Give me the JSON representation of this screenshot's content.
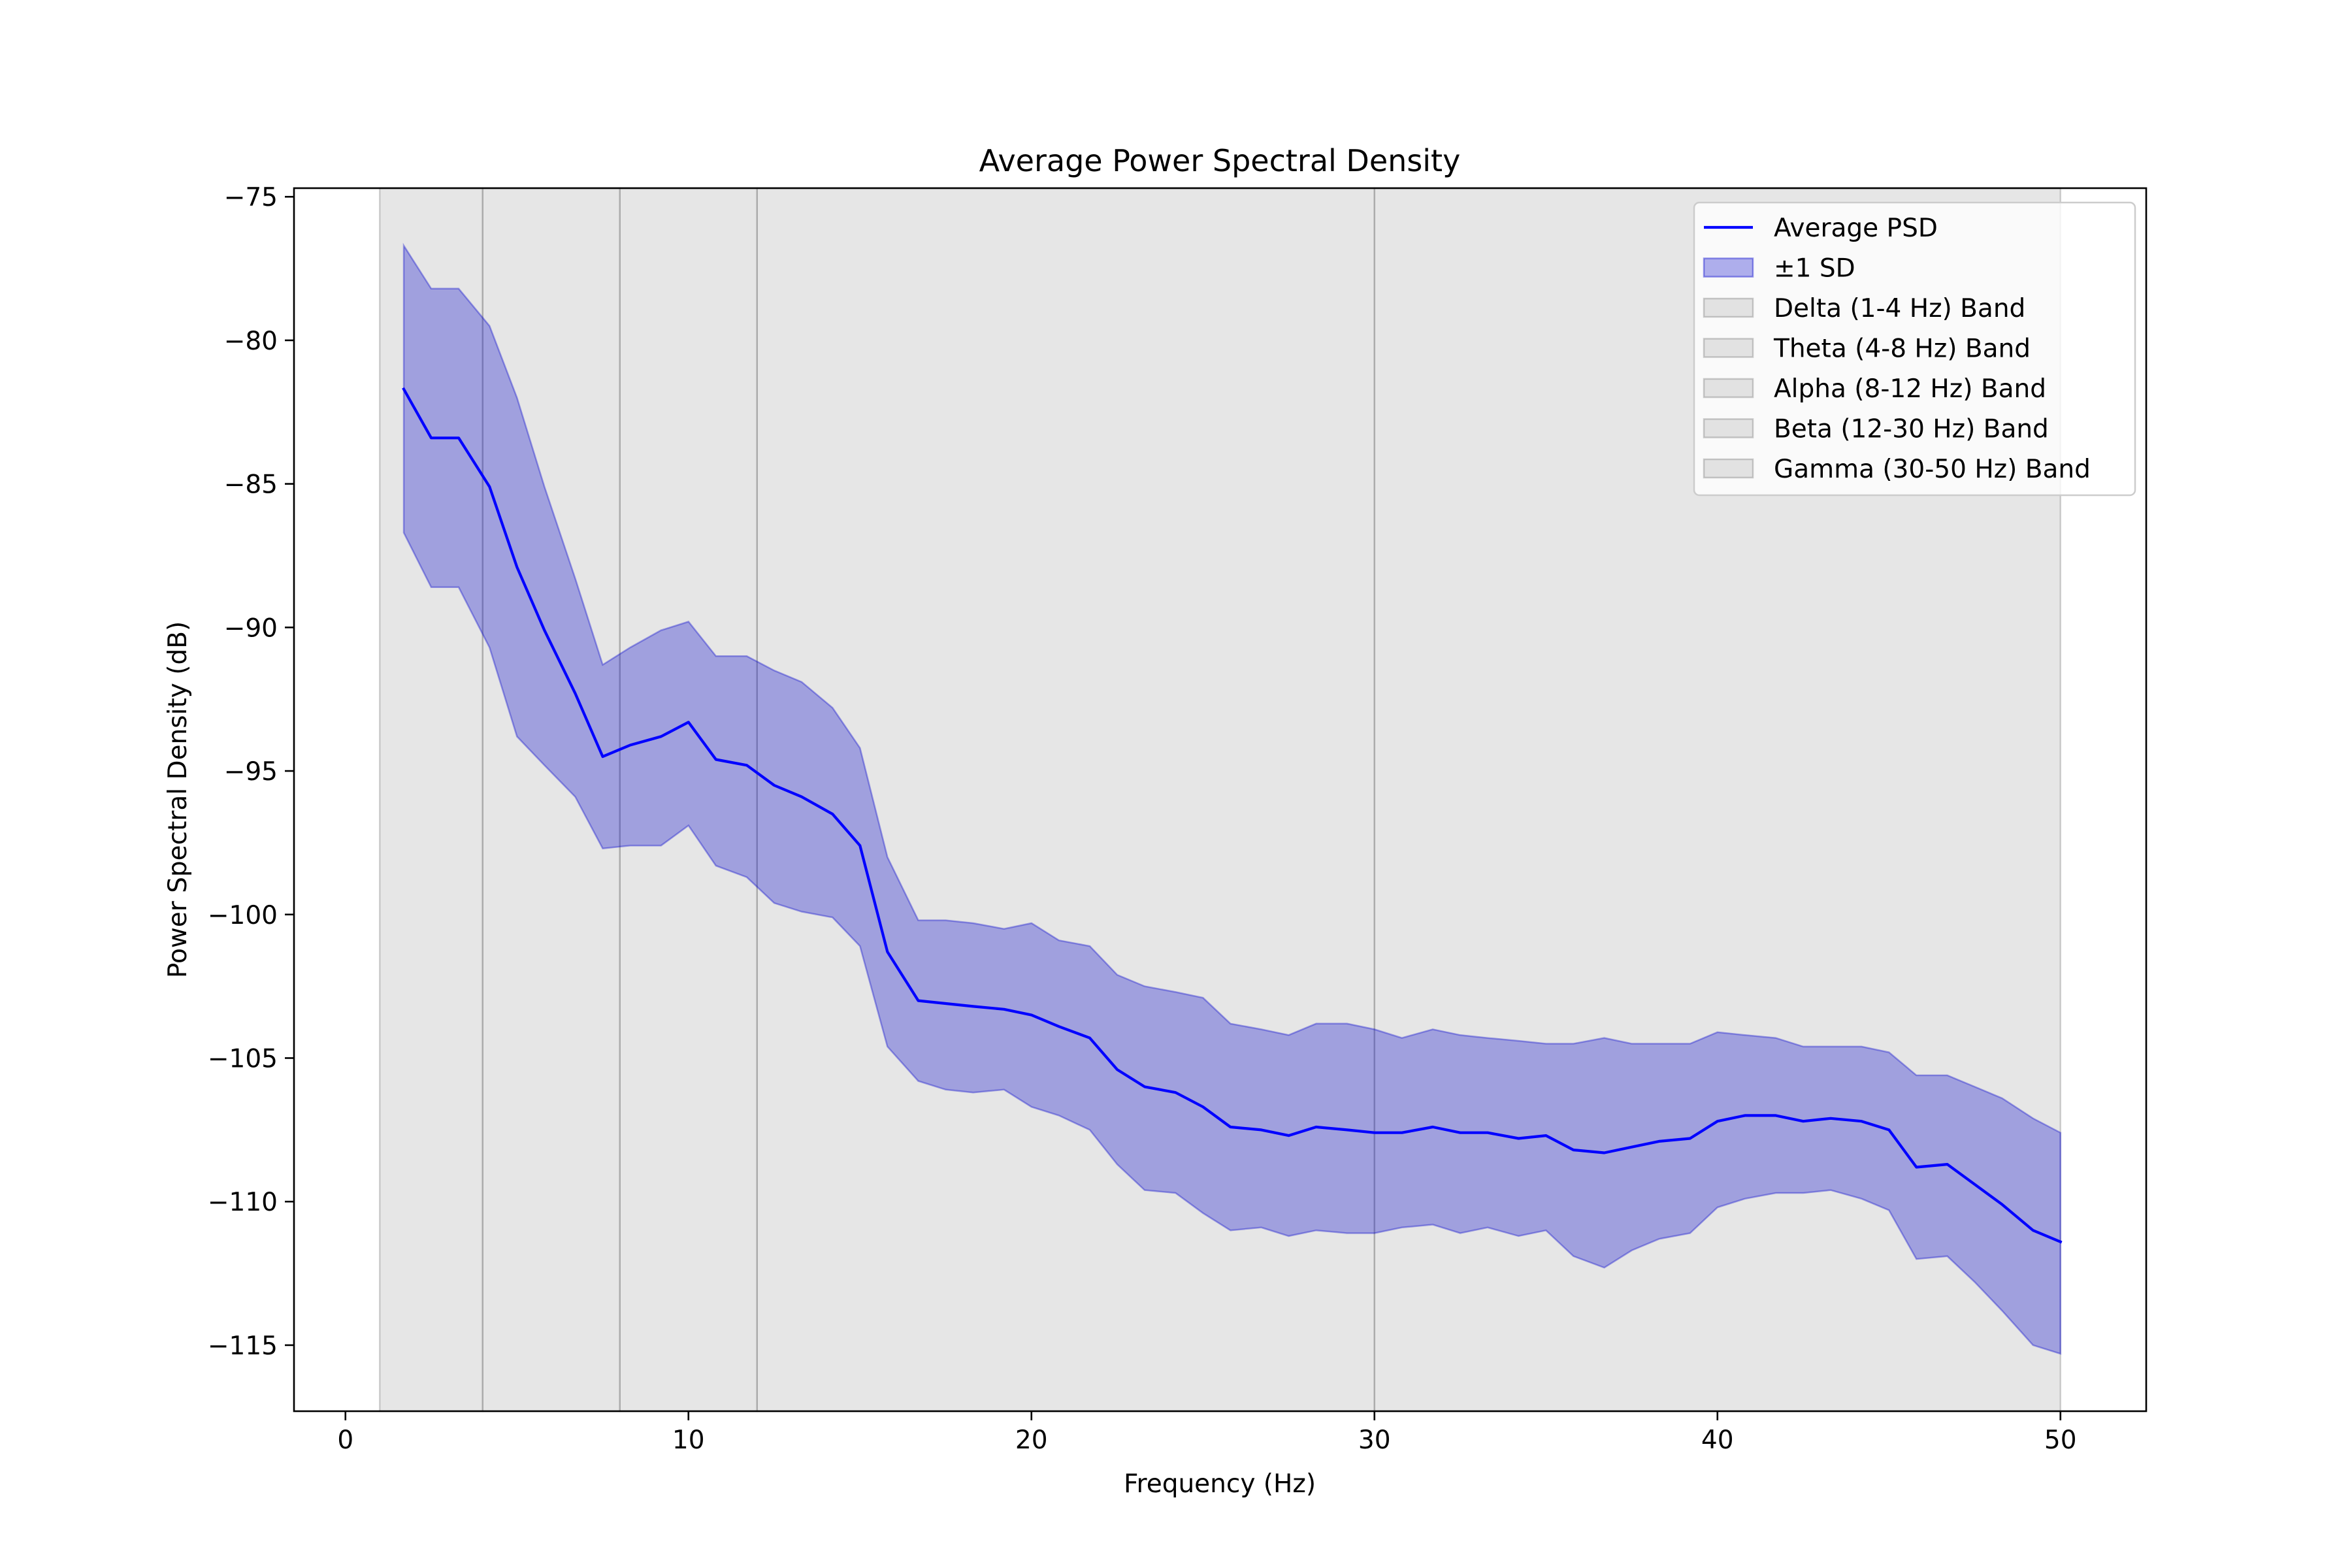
{
  "chart_data": {
    "type": "line",
    "title": "Average Power Spectral Density",
    "xlabel": "Frequency (Hz)",
    "ylabel": "Power Spectral Density (dB)",
    "xlim": [
      -1.5,
      52.5
    ],
    "ylim": [
      -117.3,
      -74.7
    ],
    "xticks": [
      {
        "value": 0,
        "label": "0"
      },
      {
        "value": 10,
        "label": "10"
      },
      {
        "value": 20,
        "label": "20"
      },
      {
        "value": 30,
        "label": "30"
      },
      {
        "value": 40,
        "label": "40"
      },
      {
        "value": 50,
        "label": "50"
      }
    ],
    "yticks": [
      {
        "value": -75,
        "label": "−75"
      },
      {
        "value": -80,
        "label": "−80"
      },
      {
        "value": -85,
        "label": "−85"
      },
      {
        "value": -90,
        "label": "−90"
      },
      {
        "value": -95,
        "label": "−95"
      },
      {
        "value": -100,
        "label": "−100"
      },
      {
        "value": -105,
        "label": "−105"
      },
      {
        "value": -110,
        "label": "−110"
      },
      {
        "value": -115,
        "label": "−115"
      }
    ],
    "grid": false,
    "legend_position": "top-right",
    "bands": [
      {
        "name": "Delta (1-4 Hz) Band",
        "range": [
          1,
          4
        ]
      },
      {
        "name": "Theta (4-8 Hz) Band",
        "range": [
          4,
          8
        ]
      },
      {
        "name": "Alpha (8-12 Hz) Band",
        "range": [
          8,
          12
        ]
      },
      {
        "name": "Beta (12-30 Hz) Band",
        "range": [
          12,
          30
        ]
      },
      {
        "name": "Gamma (30-50 Hz) Band",
        "range": [
          30,
          50
        ]
      }
    ],
    "band_color": "#808080",
    "series": [
      {
        "name": "Average PSD",
        "color": "#0000ff",
        "x": [
          1.7,
          2.5,
          3.3,
          4.2,
          5.0,
          5.8,
          6.7,
          7.5,
          8.3,
          9.2,
          10.0,
          10.8,
          11.7,
          12.5,
          13.3,
          14.2,
          15.0,
          15.8,
          16.7,
          17.5,
          18.3,
          19.2,
          20.0,
          20.8,
          21.7,
          22.5,
          23.3,
          24.2,
          25.0,
          25.8,
          26.7,
          27.5,
          28.3,
          29.2,
          30.0,
          30.8,
          31.7,
          32.5,
          33.3,
          34.2,
          35.0,
          35.8,
          36.7,
          37.5,
          38.3,
          39.2,
          40.0,
          40.8,
          41.7,
          42.5,
          43.3,
          44.2,
          45.0,
          45.8,
          46.7,
          47.5,
          48.3,
          49.2,
          50.0
        ],
        "y": [
          -81.7,
          -83.4,
          -83.4,
          -85.1,
          -87.9,
          -90.1,
          -92.3,
          -94.5,
          -94.1,
          -93.8,
          -93.3,
          -94.6,
          -94.8,
          -95.5,
          -95.9,
          -96.5,
          -97.6,
          -101.3,
          -103.0,
          -103.1,
          -103.2,
          -103.3,
          -103.5,
          -103.9,
          -104.3,
          -105.4,
          -106.0,
          -106.2,
          -106.7,
          -107.4,
          -107.5,
          -107.7,
          -107.4,
          -107.5,
          -107.6,
          -107.6,
          -107.4,
          -107.6,
          -107.6,
          -107.8,
          -107.7,
          -108.2,
          -108.3,
          -108.1,
          -107.9,
          -107.8,
          -107.2,
          -107.0,
          -107.0,
          -107.2,
          -107.1,
          -107.2,
          -107.5,
          -108.8,
          -108.7,
          -109.4,
          -110.1,
          -111.0,
          -111.4
        ]
      },
      {
        "name": "±1 SD",
        "type": "band",
        "color": "#0000cc",
        "x": [
          1.7,
          2.5,
          3.3,
          4.2,
          5.0,
          5.8,
          6.7,
          7.5,
          8.3,
          9.2,
          10.0,
          10.8,
          11.7,
          12.5,
          13.3,
          14.2,
          15.0,
          15.8,
          16.7,
          17.5,
          18.3,
          19.2,
          20.0,
          20.8,
          21.7,
          22.5,
          23.3,
          24.2,
          25.0,
          25.8,
          26.7,
          27.5,
          28.3,
          29.2,
          30.0,
          30.8,
          31.7,
          32.5,
          33.3,
          34.2,
          35.0,
          35.8,
          36.7,
          37.5,
          38.3,
          39.2,
          40.0,
          40.8,
          41.7,
          42.5,
          43.3,
          44.2,
          45.0,
          45.8,
          46.7,
          47.5,
          48.3,
          49.2,
          50.0
        ],
        "upper": [
          -76.7,
          -78.2,
          -78.2,
          -79.5,
          -82.0,
          -85.1,
          -88.3,
          -91.3,
          -90.7,
          -90.1,
          -89.8,
          -91.0,
          -91.0,
          -91.5,
          -91.9,
          -92.8,
          -94.2,
          -98.0,
          -100.2,
          -100.2,
          -100.3,
          -100.5,
          -100.3,
          -100.9,
          -101.1,
          -102.1,
          -102.5,
          -102.7,
          -102.9,
          -103.8,
          -104.0,
          -104.2,
          -103.8,
          -103.8,
          -104.0,
          -104.3,
          -104.0,
          -104.2,
          -104.3,
          -104.4,
          -104.5,
          -104.5,
          -104.3,
          -104.5,
          -104.5,
          -104.5,
          -104.1,
          -104.2,
          -104.3,
          -104.6,
          -104.6,
          -104.6,
          -104.8,
          -105.6,
          -105.6,
          -106.0,
          -106.4,
          -107.1,
          -107.6
        ],
        "lower": [
          -86.7,
          -88.6,
          -88.6,
          -90.7,
          -93.8,
          -94.8,
          -95.9,
          -97.7,
          -97.6,
          -97.6,
          -96.9,
          -98.3,
          -98.7,
          -99.6,
          -99.9,
          -100.1,
          -101.1,
          -104.6,
          -105.8,
          -106.1,
          -106.2,
          -106.1,
          -106.7,
          -107.0,
          -107.5,
          -108.7,
          -109.6,
          -109.7,
          -110.4,
          -111.0,
          -110.9,
          -111.2,
          -111.0,
          -111.1,
          -111.1,
          -110.9,
          -110.8,
          -111.1,
          -110.9,
          -111.2,
          -111.0,
          -111.9,
          -112.3,
          -111.7,
          -111.3,
          -111.1,
          -110.2,
          -109.9,
          -109.7,
          -109.7,
          -109.6,
          -109.9,
          -110.3,
          -112.0,
          -111.9,
          -112.8,
          -113.8,
          -115.0,
          -115.3
        ]
      }
    ]
  }
}
